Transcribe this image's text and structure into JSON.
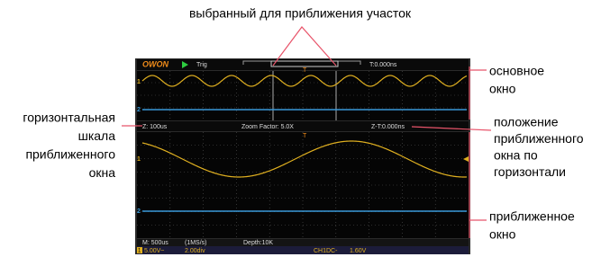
{
  "annotations": {
    "selected_region": "выбранный для приближения участок",
    "main_window": [
      "основное",
      "окно"
    ],
    "zoom_scale": [
      "горизонтальная",
      "шкала",
      "приближенного",
      "окна"
    ],
    "zoom_position": [
      "положение",
      "приближенного",
      "окна по",
      "горизонтали"
    ],
    "zoom_window": [
      "приближенное",
      "окно"
    ]
  },
  "screen": {
    "logo": "OWON",
    "trig": "Trig",
    "trigger_time": "T:0.000ns",
    "zoom_timebase": "Z: 100us",
    "zoom_factor": "Zoom Factor: 5.0X",
    "zoom_time": "Z-T:0.000ns",
    "main_timebase": "M: 500us",
    "sample_rate": "(1MS/s)",
    "depth": "Depth:10K",
    "ch1_marker": "1",
    "ch2_marker": "2",
    "ch1_scale": "5.00V~",
    "ch2_scale": "2.00div",
    "trigger_info": "CH1DC-",
    "trigger_level": "1.60V",
    "trigger_marker": "T"
  }
}
